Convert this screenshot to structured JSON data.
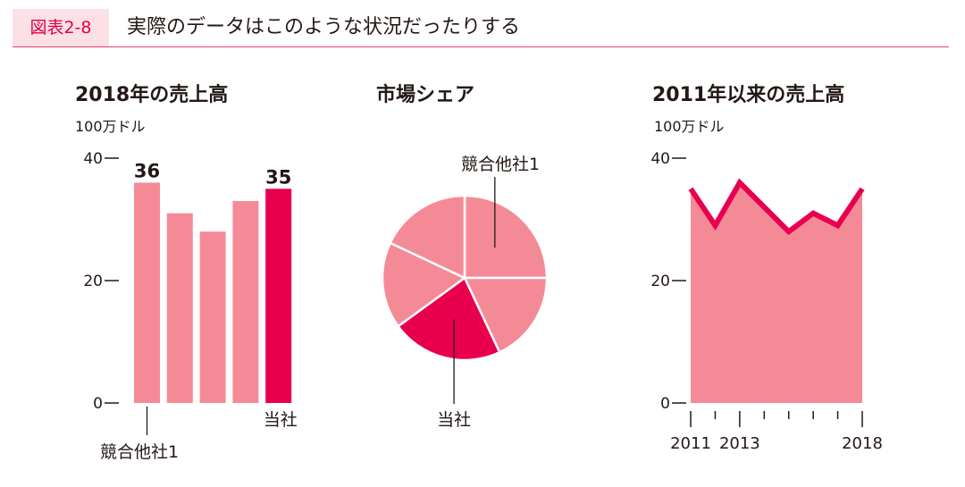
{
  "header": {
    "figure_label": "図表2-8",
    "title": "実際のデータはこのような状況だったりする"
  },
  "colors": {
    "accent": "#e8004f",
    "light": "#f58a97",
    "slice_border": "#ffffff"
  },
  "chart_data": [
    {
      "type": "bar",
      "title": "2018年の売上高",
      "unit": "100万ドル",
      "categories": [
        "競合他社1",
        "",
        "",
        "",
        "当社"
      ],
      "values": [
        36,
        31,
        28,
        33,
        35
      ],
      "data_labels": [
        "36",
        "",
        "",
        "",
        "35"
      ],
      "highlight_index": 4,
      "ylim": [
        0,
        40
      ],
      "yticks": [
        "0",
        "20",
        "40"
      ],
      "grid": false
    },
    {
      "type": "pie",
      "title": "市場シェア",
      "slices": [
        {
          "label": "競合他社1",
          "value": 25
        },
        {
          "label": "",
          "value": 18
        },
        {
          "label": "当社",
          "value": 22
        },
        {
          "label": "",
          "value": 17
        },
        {
          "label": "",
          "value": 18
        }
      ],
      "highlight_index": 2
    },
    {
      "type": "area",
      "title": "2011年以来の売上高",
      "unit": "100万ドル",
      "x": [
        2011,
        2012,
        2013,
        2014,
        2015,
        2016,
        2017,
        2018
      ],
      "values": [
        35,
        29,
        36,
        32,
        28,
        31,
        29,
        35
      ],
      "xtick_labels": [
        {
          "x": 2011,
          "label": "2011"
        },
        {
          "x": 2013,
          "label": "2013"
        },
        {
          "x": 2018,
          "label": "2018"
        }
      ],
      "ylim": [
        0,
        40
      ],
      "yticks": [
        "0",
        "20",
        "40"
      ],
      "grid": false
    }
  ]
}
